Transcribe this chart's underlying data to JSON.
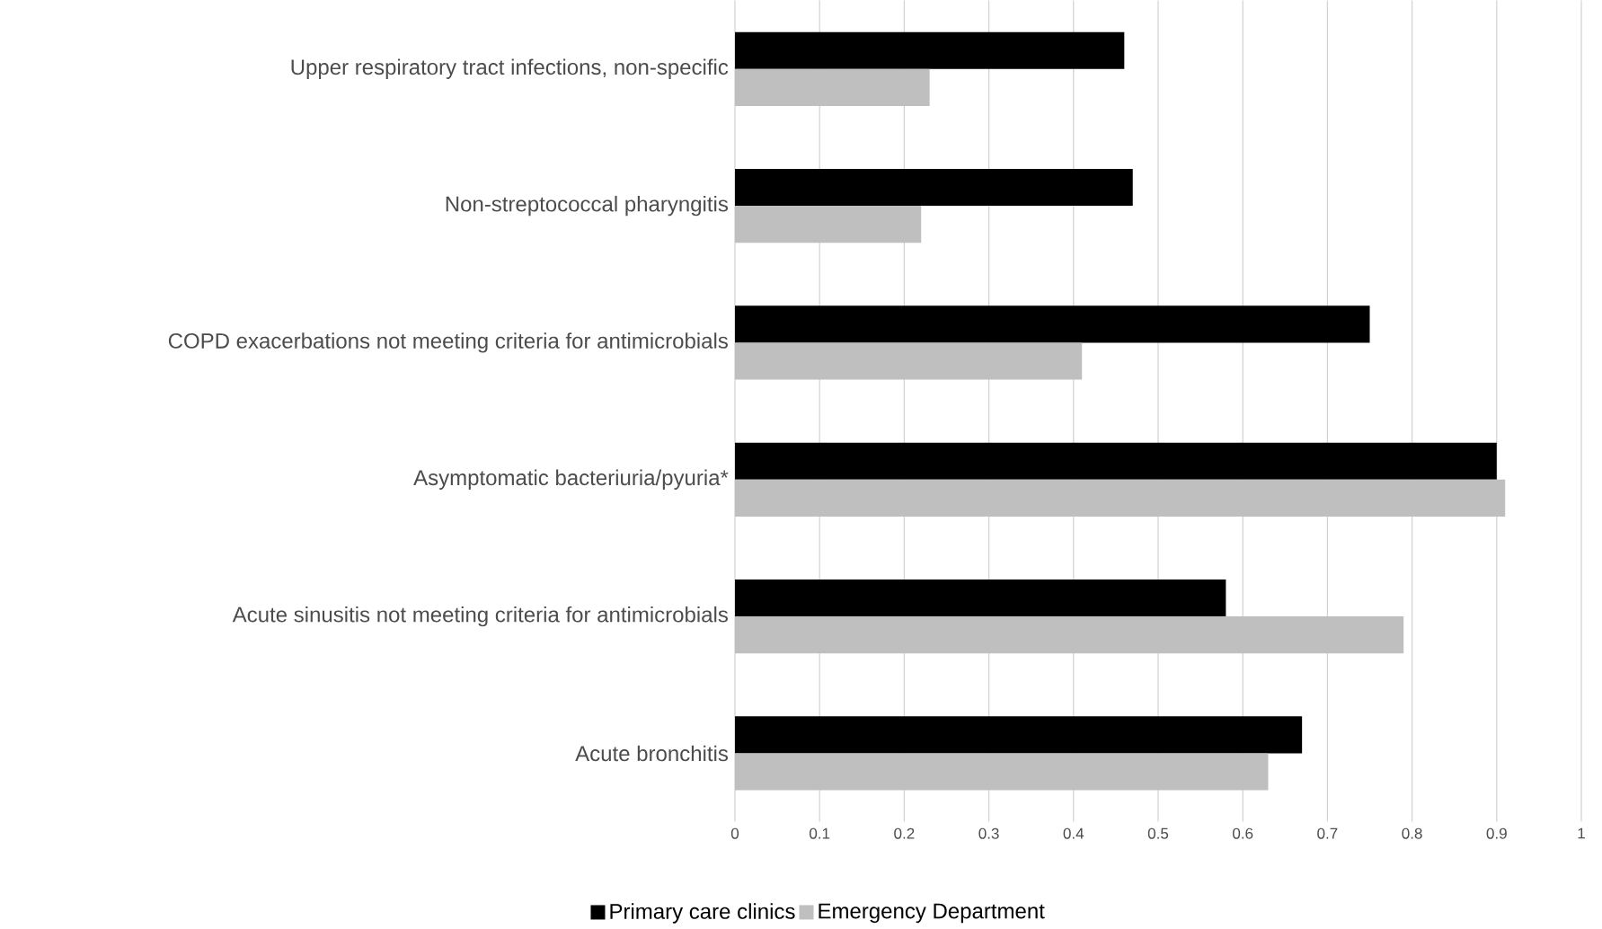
{
  "chart_data": {
    "type": "bar",
    "orientation": "horizontal",
    "categories": [
      "Upper respiratory tract infections, non-specific",
      "Non-streptococcal pharyngitis",
      "COPD exacerbations not meeting criteria for antimicrobials",
      "Asymptomatic bacteriuria/pyuria*",
      "Acute sinusitis not meeting criteria for antimicrobials",
      "Acute bronchitis"
    ],
    "series": [
      {
        "name": "Primary care clinics",
        "color": "#000000",
        "values": [
          0.46,
          0.47,
          0.75,
          0.9,
          0.58,
          0.67
        ]
      },
      {
        "name": "Emergency Department",
        "color": "#bfbfbf",
        "values": [
          0.23,
          0.22,
          0.41,
          0.91,
          0.79,
          0.63
        ]
      }
    ],
    "xlim": [
      0,
      1
    ],
    "xticks": [
      0,
      0.1,
      0.2,
      0.3,
      0.4,
      0.5,
      0.6,
      0.7,
      0.8,
      0.9,
      1
    ],
    "grid": "x",
    "legend": "bottom"
  }
}
